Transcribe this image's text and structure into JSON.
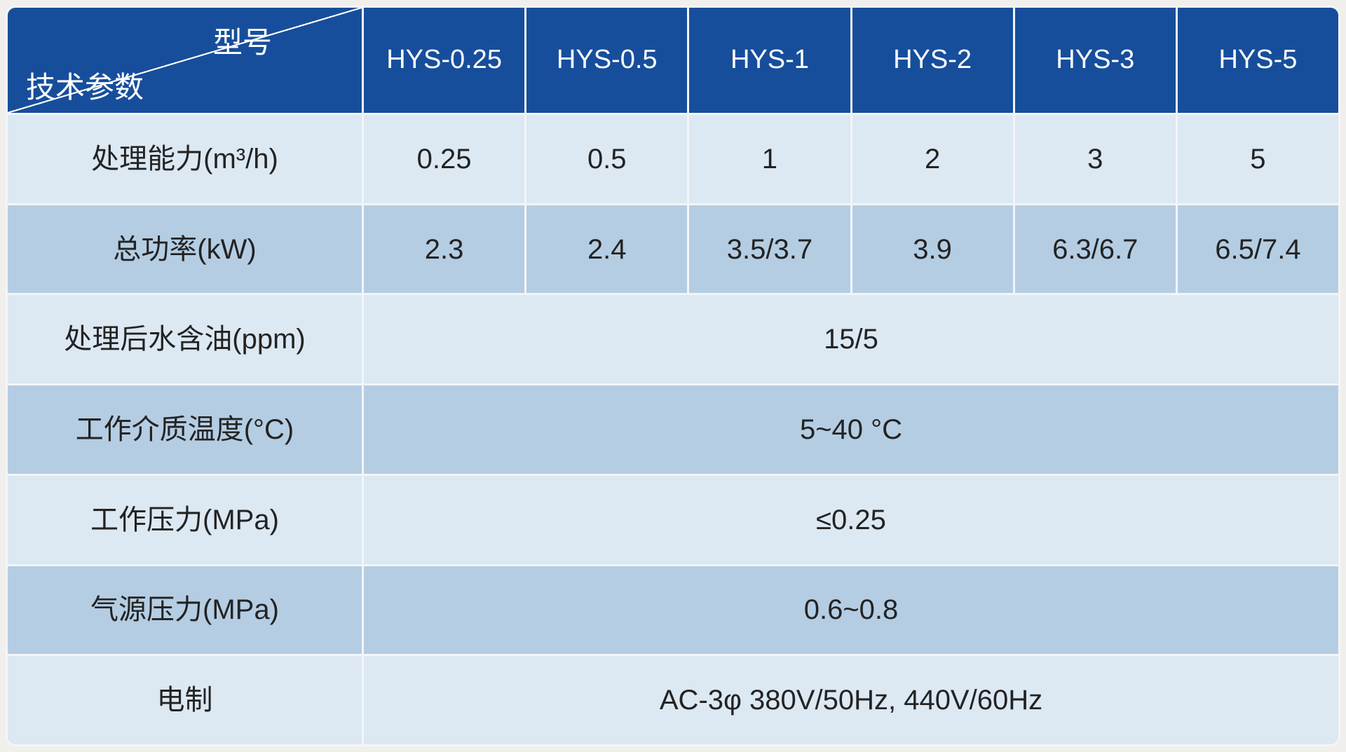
{
  "table": {
    "corner": {
      "top_right": "型号",
      "bottom_left": "技术参数"
    },
    "columns": [
      "HYS-0.25",
      "HYS-0.5",
      "HYS-1",
      "HYS-2",
      "HYS-3",
      "HYS-5"
    ],
    "rows": [
      {
        "label": "处理能力(m³/h)",
        "values": [
          "0.25",
          "0.5",
          "1",
          "2",
          "3",
          "5"
        ]
      },
      {
        "label": "总功率(kW)",
        "values": [
          "2.3",
          "2.4",
          "3.5/3.7",
          "3.9",
          "6.3/6.7",
          "6.5/7.4"
        ]
      },
      {
        "label": "处理后水含油(ppm)",
        "merged": "15/5"
      },
      {
        "label": "工作介质温度(°C)",
        "merged": "5~40 °C"
      },
      {
        "label": "工作压力(MPa)",
        "merged": "≤0.25"
      },
      {
        "label": "气源压力(MPa)",
        "merged": "0.6~0.8"
      },
      {
        "label": "电制",
        "merged": "AC-3φ 380V/50Hz, 440V/60Hz"
      }
    ],
    "colors": {
      "header_bg": "#174e9b",
      "row_light": "#dce8f2",
      "row_dark": "#b4cde3",
      "grid": "#f2f5f8",
      "page_bg": "#f1efec",
      "text_dark": "#232323",
      "text_light": "#ffffff"
    }
  }
}
